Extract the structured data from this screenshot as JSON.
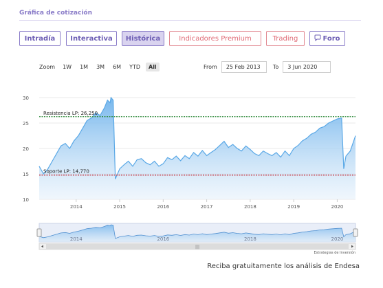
{
  "header": {
    "title": "Gráfica de cotización"
  },
  "tabs": [
    {
      "label": "Intradía",
      "active": false,
      "premium": false
    },
    {
      "label": "Interactiva",
      "active": false,
      "premium": false
    },
    {
      "label": "Histórica",
      "active": true,
      "premium": false
    },
    {
      "label": "Indicadores Premium",
      "active": false,
      "premium": true
    },
    {
      "label": "Trading",
      "active": false,
      "premium": true
    },
    {
      "label": "Foro",
      "active": false,
      "premium": false,
      "icon": "speech-bubble-icon"
    }
  ],
  "zoom": {
    "label": "Zoom",
    "options": [
      "1W",
      "1M",
      "3M",
      "6M",
      "YTD",
      "All"
    ],
    "selected": "All"
  },
  "range": {
    "from_label": "From",
    "from": "25 Feb 2013",
    "to_label": "To",
    "to": "3 Jun 2020"
  },
  "credit": "Estrategias de Inversión",
  "cta": "Reciba gratuitamente los análisis de Endesa",
  "colors": {
    "accent": "#8a7cc8",
    "premium": "#e06c77",
    "line": "#5aa8e6",
    "resistance": "#2f8a3b",
    "support": "#c4303a"
  },
  "chart_data": {
    "type": "area",
    "title": "",
    "xlabel": "",
    "ylabel": "",
    "xlim": [
      2013.15,
      2020.42
    ],
    "ylim": [
      10,
      30
    ],
    "yticks": [
      10,
      15,
      20,
      25,
      30
    ],
    "xticks": [
      2014,
      2015,
      2016,
      2017,
      2018,
      2019,
      2020
    ],
    "grid": true,
    "x": [
      2013.15,
      2013.25,
      2013.35,
      2013.45,
      2013.55,
      2013.65,
      2013.75,
      2013.85,
      2013.95,
      2014.05,
      2014.15,
      2014.25,
      2014.35,
      2014.45,
      2014.55,
      2014.65,
      2014.72,
      2014.78,
      2014.8,
      2014.85,
      2014.9,
      2015.0,
      2015.1,
      2015.2,
      2015.3,
      2015.4,
      2015.5,
      2015.6,
      2015.7,
      2015.8,
      2015.9,
      2016.0,
      2016.1,
      2016.2,
      2016.3,
      2016.4,
      2016.5,
      2016.6,
      2016.7,
      2016.8,
      2016.9,
      2017.0,
      2017.1,
      2017.2,
      2017.3,
      2017.4,
      2017.5,
      2017.6,
      2017.7,
      2017.8,
      2017.9,
      2018.0,
      2018.1,
      2018.2,
      2018.3,
      2018.4,
      2018.5,
      2018.6,
      2018.7,
      2018.8,
      2018.9,
      2019.0,
      2019.1,
      2019.2,
      2019.3,
      2019.4,
      2019.5,
      2019.6,
      2019.7,
      2019.8,
      2019.9,
      2020.0,
      2020.1,
      2020.15,
      2020.2,
      2020.3,
      2020.42
    ],
    "series": [
      {
        "name": "",
        "values": [
          16.5,
          15.0,
          16.0,
          17.5,
          19.0,
          20.5,
          21.0,
          20.0,
          21.5,
          22.5,
          24.0,
          25.5,
          26.0,
          27.0,
          26.5,
          28.0,
          29.5,
          29.0,
          30.0,
          29.5,
          14.0,
          16.0,
          16.8,
          17.5,
          16.5,
          17.8,
          18.0,
          17.2,
          16.8,
          17.5,
          16.5,
          17.0,
          18.2,
          17.8,
          18.5,
          17.6,
          18.6,
          18.0,
          19.2,
          18.5,
          19.6,
          18.6,
          19.2,
          19.8,
          20.6,
          21.4,
          20.2,
          20.8,
          20.0,
          19.5,
          20.5,
          19.8,
          19.0,
          18.6,
          19.5,
          19.0,
          18.6,
          19.2,
          18.3,
          19.5,
          18.6,
          20.0,
          20.6,
          21.5,
          22.0,
          22.8,
          23.2,
          24.0,
          24.3,
          25.0,
          25.4,
          25.8,
          26.0,
          16.0,
          18.5,
          19.5,
          22.5
        ]
      }
    ],
    "reference_lines": [
      {
        "label": "Resistencia LP: 26,250",
        "value": 26.25,
        "color": "#2f8a3b"
      },
      {
        "label": "Soporte LP: 14,770",
        "value": 14.77,
        "color": "#c4303a"
      }
    ],
    "navigator_ticks": [
      "2014",
      "2016",
      "2018",
      "2020"
    ]
  }
}
